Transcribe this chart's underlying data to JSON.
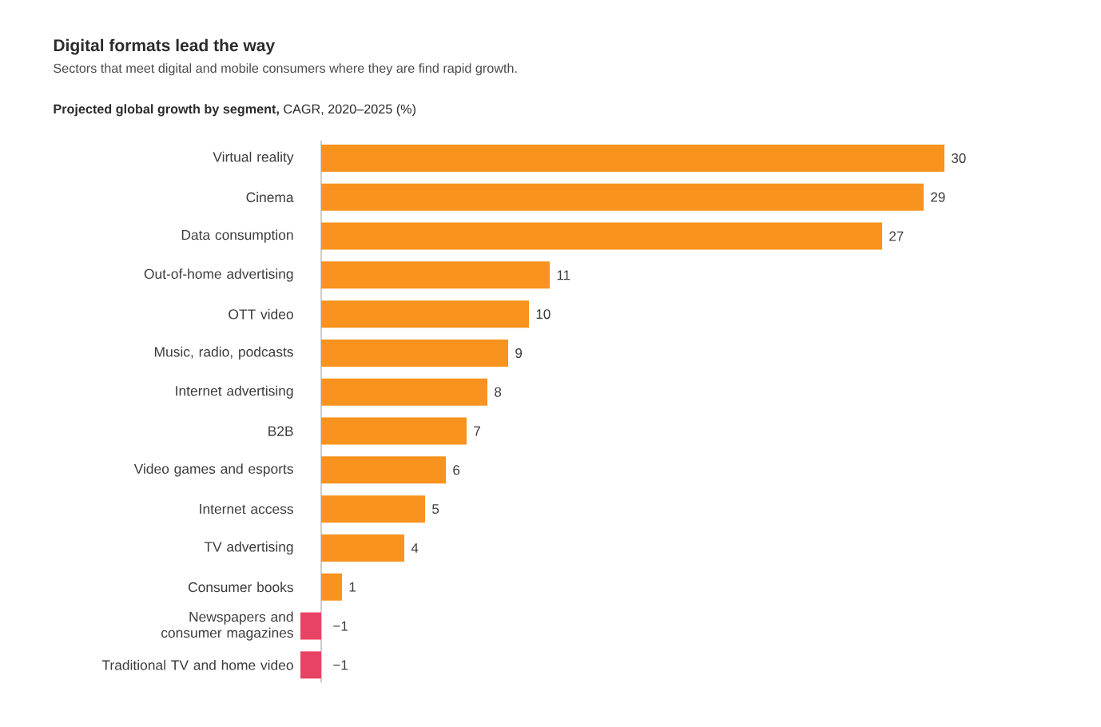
{
  "chart_data": {
    "type": "bar",
    "orientation": "horizontal",
    "title": "Digital formats lead the way",
    "subtitle": "Sectors that meet digital and mobile consumers where they are find rapid growth.",
    "xlabel": "**Projected global growth by segment,** CAGR, 2020–2025 (%)",
    "categories": [
      "Virtual reality",
      "Cinema",
      "Data consumption",
      "Out-of-home advertising",
      "OTT video",
      "Music, radio, podcasts",
      "Internet advertising",
      "B2B",
      "Video games and esports",
      "Internet access",
      "TV advertising",
      "Consumer books",
      "Newspapers and consumer magazines",
      "Traditional TV and home video"
    ],
    "values": [
      30,
      29,
      27,
      11,
      10,
      9,
      8,
      7,
      6,
      5,
      4,
      1,
      -1,
      -1
    ],
    "colors": [
      "#f7931e",
      "#f7931e",
      "#f7931e",
      "#f7931e",
      "#f7931e",
      "#f7931e",
      "#f7931e",
      "#f7931e",
      "#f7931e",
      "#f7931e",
      "#f7931e",
      "#f7931e",
      "#e84364",
      "#e84364"
    ],
    "value_labels": [
      "30",
      "29",
      "27",
      "11",
      "10",
      "9",
      "8",
      "7",
      "6",
      "5",
      "4",
      "1",
      "−1",
      "−1"
    ],
    "tick_labels": "y"
  }
}
